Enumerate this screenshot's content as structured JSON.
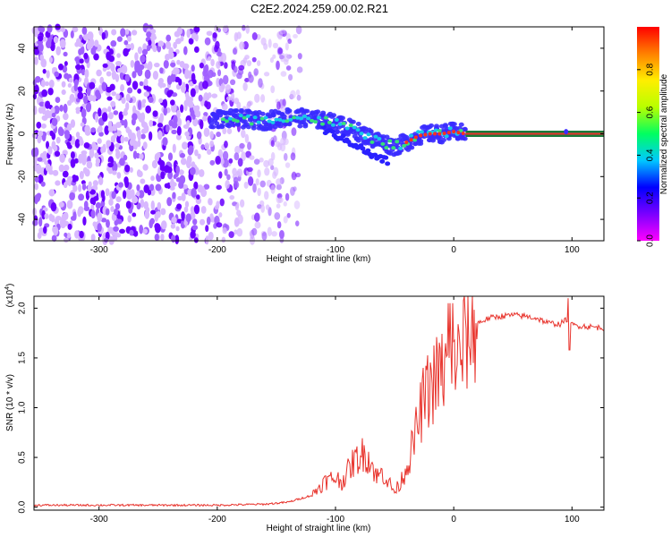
{
  "title": "C2E2.2024.259.00.02.R21",
  "colors": {
    "snr_line": "#e8332c",
    "spec_line": "#e8332c",
    "axis": "#000000",
    "colorbar": [
      "#ff00ff",
      "#7a00ff",
      "#0000ff",
      "#00c8ff",
      "#00ff60",
      "#b8ff00",
      "#ffee00",
      "#ff8000",
      "#ff0000"
    ]
  },
  "chart_data": [
    {
      "type": "heatmap",
      "name": "spectrogram",
      "xlabel": "Height of straight line (km)",
      "ylabel": "Frequency (Hz)",
      "xlim": [
        -355,
        127
      ],
      "ylim": [
        -50,
        50
      ],
      "xticks": [
        -300,
        -200,
        -100,
        0,
        100
      ],
      "xtick_labels": [
        "-300",
        "-200",
        "-100",
        "0",
        "100"
      ],
      "yticks": [
        -40,
        -20,
        0,
        20,
        40
      ],
      "ytick_labels": [
        "-40",
        "-20",
        "0",
        "20",
        "40"
      ],
      "noise_region_x": [
        -355,
        -150
      ],
      "signal_ridge": {
        "x": [
          -205,
          -180,
          -160,
          -140,
          -120,
          -100,
          -85,
          -70,
          -60,
          -50,
          -40,
          -30,
          -20,
          -10,
          0,
          10,
          127
        ],
        "y": [
          7,
          7,
          6,
          8,
          7,
          5,
          2,
          -2,
          -4,
          -6,
          -4,
          -1,
          0,
          0,
          1,
          0,
          0
        ]
      },
      "secondary_branch": {
        "x": [
          -110,
          -95,
          -80,
          -70,
          -60,
          -55
        ],
        "y": [
          2,
          -2,
          -6,
          -10,
          -12,
          -13
        ]
      },
      "colorbar": {
        "label": "Normalized spectral amplitude",
        "range": [
          0,
          1
        ],
        "ticks": [
          0.0,
          0.2,
          0.4,
          0.6,
          0.8
        ],
        "tick_labels": [
          "0.0",
          "0.2",
          "0.4",
          "0.6",
          "0.8"
        ]
      }
    },
    {
      "type": "line",
      "name": "snr",
      "xlabel": "Height of straight line (km)",
      "ylabel": "SNR (10 * v/v)",
      "y_multiplier_label": "(x10",
      "y_multiplier_exp": "4",
      "xlim": [
        -355,
        127
      ],
      "ylim": [
        -0.03,
        2.12
      ],
      "xticks": [
        -300,
        -200,
        -100,
        0,
        100
      ],
      "xtick_labels": [
        "-300",
        "-200",
        "-100",
        "0",
        "100"
      ],
      "yticks": [
        0.0,
        0.5,
        1.0,
        1.5,
        2.0
      ],
      "ytick_labels": [
        "0.0",
        "0.5",
        "1.0",
        "1.5",
        "2.0"
      ],
      "series": [
        {
          "name": "SNR",
          "x": [
            -355,
            -200,
            -160,
            -140,
            -120,
            -110,
            -100,
            -95,
            -90,
            -85,
            -80,
            -75,
            -70,
            -65,
            -60,
            -55,
            -50,
            -45,
            -40,
            -35,
            -30,
            -25,
            -20,
            -15,
            -10,
            -5,
            0,
            5,
            10,
            15,
            20,
            30,
            40,
            50,
            60,
            70,
            80,
            90,
            97,
            100,
            110,
            127
          ],
          "y": [
            0.02,
            0.02,
            0.03,
            0.05,
            0.12,
            0.25,
            0.3,
            0.25,
            0.35,
            0.45,
            0.5,
            0.55,
            0.45,
            0.3,
            0.35,
            0.25,
            0.15,
            0.25,
            0.4,
            0.6,
            0.85,
            1.1,
            1.2,
            1.3,
            1.35,
            1.4,
            1.55,
            1.45,
            1.7,
            1.8,
            1.85,
            1.9,
            1.92,
            1.93,
            1.92,
            1.9,
            1.85,
            1.84,
            1.9,
            1.83,
            1.82,
            1.8
          ]
        }
      ]
    }
  ]
}
